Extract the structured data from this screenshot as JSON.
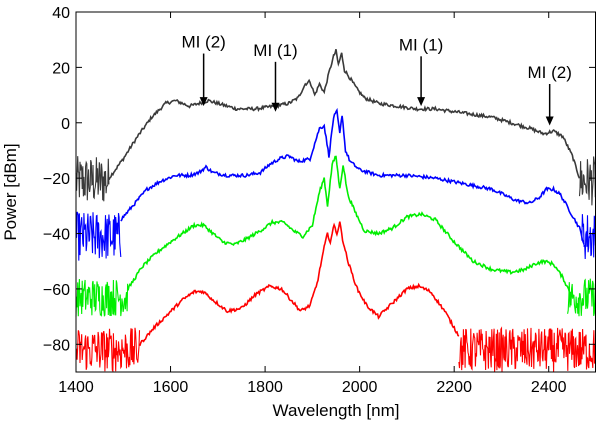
{
  "chart_data": {
    "type": "line",
    "title": "",
    "xlabel": "Wavelength [nm]",
    "ylabel": "Power [dBm]",
    "xlim": [
      1400,
      2500
    ],
    "ylim": [
      -90,
      40
    ],
    "xticks": [
      1400,
      1600,
      1800,
      2000,
      2200,
      2400
    ],
    "yticks": [
      -80,
      -60,
      -40,
      -20,
      0,
      20,
      40
    ],
    "xtick_labels": [
      "1400",
      "1600",
      "1800",
      "2000",
      "2200",
      "2400"
    ],
    "ytick_labels": [
      "−80",
      "−60",
      "−40",
      "−20",
      "0",
      "20",
      "40"
    ],
    "grid": false,
    "legend": "none",
    "series": [
      {
        "color": "#3a3a3a",
        "noise": {
          "x0": 1400,
          "x1": 1470,
          "x2": 2465,
          "x3": 2500,
          "lo": -30,
          "hi": -12
        },
        "points": [
          [
            1470,
            -20
          ],
          [
            1500,
            -13
          ],
          [
            1530,
            -5
          ],
          [
            1560,
            2
          ],
          [
            1590,
            7
          ],
          [
            1610,
            8
          ],
          [
            1640,
            6
          ],
          [
            1660,
            7
          ],
          [
            1680,
            8
          ],
          [
            1700,
            7
          ],
          [
            1740,
            5
          ],
          [
            1780,
            5
          ],
          [
            1820,
            6
          ],
          [
            1850,
            7
          ],
          [
            1870,
            9
          ],
          [
            1885,
            14
          ],
          [
            1895,
            15
          ],
          [
            1905,
            10
          ],
          [
            1915,
            14
          ],
          [
            1925,
            11
          ],
          [
            1935,
            18
          ],
          [
            1945,
            24
          ],
          [
            1950,
            26
          ],
          [
            1955,
            21
          ],
          [
            1962,
            25
          ],
          [
            1968,
            19
          ],
          [
            1980,
            16
          ],
          [
            1995,
            12
          ],
          [
            2010,
            9
          ],
          [
            2040,
            7
          ],
          [
            2080,
            6
          ],
          [
            2120,
            5
          ],
          [
            2160,
            5
          ],
          [
            2200,
            4
          ],
          [
            2240,
            3
          ],
          [
            2280,
            2
          ],
          [
            2320,
            0
          ],
          [
            2360,
            -2
          ],
          [
            2390,
            -4
          ],
          [
            2410,
            -3
          ],
          [
            2430,
            -5
          ],
          [
            2450,
            -12
          ],
          [
            2465,
            -20
          ]
        ]
      },
      {
        "color": "#0000ff",
        "noise": {
          "x0": 1400,
          "x1": 1495,
          "x2": 2470,
          "x3": 2500,
          "lo": -50,
          "hi": -32
        },
        "points": [
          [
            1495,
            -35
          ],
          [
            1520,
            -30
          ],
          [
            1550,
            -24
          ],
          [
            1580,
            -21
          ],
          [
            1610,
            -19
          ],
          [
            1640,
            -19
          ],
          [
            1660,
            -18
          ],
          [
            1675,
            -16
          ],
          [
            1690,
            -18
          ],
          [
            1720,
            -19
          ],
          [
            1760,
            -19
          ],
          [
            1790,
            -18
          ],
          [
            1810,
            -15
          ],
          [
            1830,
            -13
          ],
          [
            1850,
            -12
          ],
          [
            1870,
            -14
          ],
          [
            1895,
            -13
          ],
          [
            1915,
            -2
          ],
          [
            1925,
            -1
          ],
          [
            1935,
            -12
          ],
          [
            1945,
            2
          ],
          [
            1952,
            4
          ],
          [
            1958,
            -4
          ],
          [
            1963,
            3
          ],
          [
            1970,
            -10
          ],
          [
            1980,
            -14
          ],
          [
            2000,
            -17
          ],
          [
            2040,
            -19
          ],
          [
            2100,
            -19
          ],
          [
            2160,
            -20
          ],
          [
            2220,
            -22
          ],
          [
            2280,
            -24
          ],
          [
            2330,
            -28
          ],
          [
            2360,
            -29
          ],
          [
            2380,
            -27
          ],
          [
            2395,
            -24
          ],
          [
            2410,
            -24
          ],
          [
            2425,
            -26
          ],
          [
            2445,
            -32
          ],
          [
            2465,
            -38
          ],
          [
            2475,
            -44
          ]
        ]
      },
      {
        "color": "#00ee00",
        "noise": {
          "x0": 1400,
          "x1": 1510,
          "x2": 2440,
          "x3": 2500,
          "lo": -70,
          "hi": -56
        },
        "points": [
          [
            1510,
            -60
          ],
          [
            1540,
            -52
          ],
          [
            1570,
            -47
          ],
          [
            1600,
            -43
          ],
          [
            1625,
            -40
          ],
          [
            1650,
            -37
          ],
          [
            1670,
            -37
          ],
          [
            1690,
            -40
          ],
          [
            1710,
            -43
          ],
          [
            1735,
            -44
          ],
          [
            1760,
            -42
          ],
          [
            1790,
            -39
          ],
          [
            1815,
            -36
          ],
          [
            1840,
            -36
          ],
          [
            1860,
            -39
          ],
          [
            1880,
            -41
          ],
          [
            1900,
            -37
          ],
          [
            1915,
            -25
          ],
          [
            1925,
            -20
          ],
          [
            1932,
            -30
          ],
          [
            1942,
            -15
          ],
          [
            1950,
            -12
          ],
          [
            1958,
            -24
          ],
          [
            1965,
            -15
          ],
          [
            1975,
            -26
          ],
          [
            1990,
            -32
          ],
          [
            2010,
            -39
          ],
          [
            2040,
            -40
          ],
          [
            2070,
            -38
          ],
          [
            2100,
            -34
          ],
          [
            2130,
            -33
          ],
          [
            2160,
            -35
          ],
          [
            2200,
            -43
          ],
          [
            2240,
            -50
          ],
          [
            2280,
            -53
          ],
          [
            2320,
            -54
          ],
          [
            2350,
            -53
          ],
          [
            2370,
            -51
          ],
          [
            2390,
            -50
          ],
          [
            2410,
            -51
          ],
          [
            2430,
            -56
          ],
          [
            2450,
            -63
          ]
        ]
      },
      {
        "color": "#ff0000",
        "noise": {
          "x0": 1400,
          "x1": 1535,
          "x2": 2210,
          "x3": 2500,
          "lo": -90,
          "hi": -74
        },
        "points": [
          [
            1535,
            -80
          ],
          [
            1565,
            -74
          ],
          [
            1595,
            -69
          ],
          [
            1625,
            -64
          ],
          [
            1650,
            -61
          ],
          [
            1670,
            -61
          ],
          [
            1690,
            -64
          ],
          [
            1720,
            -68
          ],
          [
            1750,
            -67
          ],
          [
            1780,
            -62
          ],
          [
            1810,
            -59
          ],
          [
            1835,
            -60
          ],
          [
            1855,
            -64
          ],
          [
            1875,
            -68
          ],
          [
            1895,
            -66
          ],
          [
            1910,
            -58
          ],
          [
            1925,
            -45
          ],
          [
            1932,
            -40
          ],
          [
            1938,
            -43
          ],
          [
            1946,
            -37
          ],
          [
            1952,
            -40
          ],
          [
            1958,
            -36
          ],
          [
            1964,
            -42
          ],
          [
            1975,
            -50
          ],
          [
            1995,
            -60
          ],
          [
            2015,
            -66
          ],
          [
            2040,
            -70
          ],
          [
            2070,
            -65
          ],
          [
            2100,
            -60
          ],
          [
            2125,
            -59
          ],
          [
            2150,
            -61
          ],
          [
            2180,
            -68
          ],
          [
            2210,
            -77
          ]
        ]
      }
    ],
    "annotations": [
      {
        "text": "MI (2)",
        "x": 1670,
        "arrow_y_top": 25,
        "arrow_y_bottom": 6
      },
      {
        "text": "MI (1)",
        "x": 1822,
        "arrow_y_top": 22,
        "arrow_y_bottom": 4
      },
      {
        "text": "MI (1)",
        "x": 2130,
        "arrow_y_top": 24,
        "arrow_y_bottom": 6
      },
      {
        "text": "MI (2)",
        "x": 2402,
        "arrow_y_top": 14,
        "arrow_y_bottom": -1
      }
    ]
  }
}
